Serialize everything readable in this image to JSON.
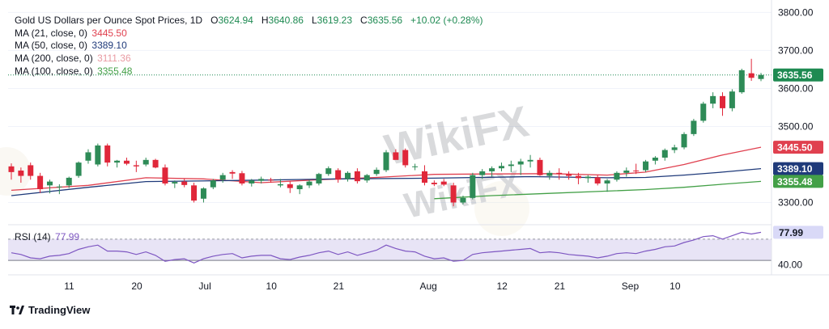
{
  "header": {
    "symbol_title": "Gold US Dollars per Ounce Spot Prices, 1D",
    "ohlc": [
      {
        "key": "O",
        "value": "3624.94"
      },
      {
        "key": "H",
        "value": "3640.86"
      },
      {
        "key": "L",
        "value": "3619.23"
      },
      {
        "key": "C",
        "value": "3635.56"
      }
    ],
    "change": "+10.02 (+0.28%)"
  },
  "indicators": [
    {
      "label": "MA (21, close, 0)",
      "value": "3445.50",
      "color": "#e0404f"
    },
    {
      "label": "MA (50, close, 0)",
      "value": "3389.10",
      "color": "#1f3a7a"
    },
    {
      "label": "MA (200, close, 0)",
      "value": "3111.36",
      "color": "#e99aa2"
    },
    {
      "label": "MA (100, close, 0)",
      "value": "3355.48",
      "color": "#43a047"
    }
  ],
  "rsi": {
    "label": "RSI (14)",
    "value": "77.99"
  },
  "price_axis": {
    "ticks": [
      "3800.00",
      "3700.00",
      "3600.00",
      "3500.00",
      "3300.00"
    ]
  },
  "rsi_axis": {
    "ticks": [
      "40.00"
    ]
  },
  "time_axis": {
    "labels": [
      "11",
      "20",
      "Jul",
      "10",
      "21",
      "Aug",
      "12",
      "21",
      "Sep",
      "10"
    ]
  },
  "price_tags": [
    {
      "value": "3635.56",
      "bg": "#1e8a52",
      "fg": "#ffffff"
    },
    {
      "value": "3445.50",
      "bg": "#e0404f",
      "fg": "#ffffff"
    },
    {
      "value": "3389.10",
      "bg": "#1f3a7a",
      "fg": "#ffffff"
    },
    {
      "value": "3355.48",
      "bg": "#43a047",
      "fg": "#ffffff"
    }
  ],
  "rsi_tag": {
    "value": "77.99",
    "bg": "#d9d9f7",
    "fg": "#131722"
  },
  "watermark": "WikiFX",
  "branding": "TradingView",
  "colors": {
    "up": "#2e8b57",
    "down": "#e0273a",
    "rsi_line": "#7e57c2",
    "rsi_band": "#e8e4f6"
  },
  "chart_data": {
    "type": "candlestick",
    "title": "Gold US Dollars per Ounce Spot Prices, 1D",
    "timeframe": "1D",
    "ylim": [
      3250,
      3820
    ],
    "candles": [
      {
        "o": 3395,
        "h": 3403,
        "l": 3360,
        "c": 3380
      },
      {
        "o": 3384,
        "h": 3392,
        "l": 3352,
        "c": 3370
      },
      {
        "o": 3398,
        "h": 3405,
        "l": 3360,
        "c": 3370
      },
      {
        "o": 3370,
        "h": 3378,
        "l": 3325,
        "c": 3335
      },
      {
        "o": 3345,
        "h": 3360,
        "l": 3324,
        "c": 3355
      },
      {
        "o": 3340,
        "h": 3348,
        "l": 3322,
        "c": 3342
      },
      {
        "o": 3345,
        "h": 3368,
        "l": 3338,
        "c": 3365
      },
      {
        "o": 3370,
        "h": 3408,
        "l": 3365,
        "c": 3405
      },
      {
        "o": 3410,
        "h": 3440,
        "l": 3402,
        "c": 3432
      },
      {
        "o": 3400,
        "h": 3455,
        "l": 3395,
        "c": 3450
      },
      {
        "o": 3450,
        "h": 3455,
        "l": 3395,
        "c": 3405
      },
      {
        "o": 3405,
        "h": 3412,
        "l": 3392,
        "c": 3410
      },
      {
        "o": 3410,
        "h": 3418,
        "l": 3398,
        "c": 3402
      },
      {
        "o": 3398,
        "h": 3410,
        "l": 3380,
        "c": 3395
      },
      {
        "o": 3400,
        "h": 3418,
        "l": 3395,
        "c": 3412
      },
      {
        "o": 3412,
        "h": 3415,
        "l": 3390,
        "c": 3392
      },
      {
        "o": 3392,
        "h": 3400,
        "l": 3345,
        "c": 3350
      },
      {
        "o": 3350,
        "h": 3358,
        "l": 3338,
        "c": 3354
      },
      {
        "o": 3355,
        "h": 3362,
        "l": 3340,
        "c": 3346
      },
      {
        "o": 3345,
        "h": 3352,
        "l": 3300,
        "c": 3305
      },
      {
        "o": 3310,
        "h": 3340,
        "l": 3300,
        "c": 3337
      },
      {
        "o": 3340,
        "h": 3362,
        "l": 3335,
        "c": 3358
      },
      {
        "o": 3360,
        "h": 3378,
        "l": 3352,
        "c": 3372
      },
      {
        "o": 3380,
        "h": 3385,
        "l": 3362,
        "c": 3376
      },
      {
        "o": 3377,
        "h": 3383,
        "l": 3345,
        "c": 3350
      },
      {
        "o": 3350,
        "h": 3362,
        "l": 3342,
        "c": 3358
      },
      {
        "o": 3357,
        "h": 3368,
        "l": 3350,
        "c": 3362
      },
      {
        "o": 3360,
        "h": 3365,
        "l": 3352,
        "c": 3358
      },
      {
        "o": 3345,
        "h": 3362,
        "l": 3340,
        "c": 3348
      },
      {
        "o": 3348,
        "h": 3356,
        "l": 3325,
        "c": 3338
      },
      {
        "o": 3335,
        "h": 3348,
        "l": 3322,
        "c": 3345
      },
      {
        "o": 3345,
        "h": 3360,
        "l": 3338,
        "c": 3355
      },
      {
        "o": 3350,
        "h": 3378,
        "l": 3345,
        "c": 3375
      },
      {
        "o": 3375,
        "h": 3395,
        "l": 3370,
        "c": 3390
      },
      {
        "o": 3385,
        "h": 3390,
        "l": 3352,
        "c": 3360
      },
      {
        "o": 3362,
        "h": 3382,
        "l": 3355,
        "c": 3378
      },
      {
        "o": 3382,
        "h": 3390,
        "l": 3350,
        "c": 3356
      },
      {
        "o": 3358,
        "h": 3375,
        "l": 3352,
        "c": 3372
      },
      {
        "o": 3375,
        "h": 3392,
        "l": 3370,
        "c": 3386
      },
      {
        "o": 3385,
        "h": 3438,
        "l": 3380,
        "c": 3432
      },
      {
        "o": 3432,
        "h": 3440,
        "l": 3415,
        "c": 3412
      },
      {
        "o": 3438,
        "h": 3442,
        "l": 3392,
        "c": 3398
      },
      {
        "o": 3395,
        "h": 3402,
        "l": 3385,
        "c": 3395
      },
      {
        "o": 3382,
        "h": 3398,
        "l": 3345,
        "c": 3352
      },
      {
        "o": 3352,
        "h": 3358,
        "l": 3343,
        "c": 3348
      },
      {
        "o": 3355,
        "h": 3362,
        "l": 3343,
        "c": 3347
      },
      {
        "o": 3345,
        "h": 3352,
        "l": 3290,
        "c": 3300
      },
      {
        "o": 3300,
        "h": 3318,
        "l": 3295,
        "c": 3312
      },
      {
        "o": 3312,
        "h": 3378,
        "l": 3308,
        "c": 3372
      },
      {
        "o": 3372,
        "h": 3388,
        "l": 3362,
        "c": 3382
      },
      {
        "o": 3382,
        "h": 3395,
        "l": 3368,
        "c": 3390
      },
      {
        "o": 3390,
        "h": 3405,
        "l": 3382,
        "c": 3396
      },
      {
        "o": 3396,
        "h": 3410,
        "l": 3380,
        "c": 3400
      },
      {
        "o": 3400,
        "h": 3415,
        "l": 3372,
        "c": 3408
      },
      {
        "o": 3408,
        "h": 3425,
        "l": 3392,
        "c": 3412
      },
      {
        "o": 3412,
        "h": 3418,
        "l": 3370,
        "c": 3372
      },
      {
        "o": 3370,
        "h": 3384,
        "l": 3360,
        "c": 3378
      },
      {
        "o": 3378,
        "h": 3390,
        "l": 3360,
        "c": 3375
      },
      {
        "o": 3375,
        "h": 3382,
        "l": 3360,
        "c": 3370
      },
      {
        "o": 3370,
        "h": 3378,
        "l": 3348,
        "c": 3364
      },
      {
        "o": 3364,
        "h": 3372,
        "l": 3352,
        "c": 3368
      },
      {
        "o": 3366,
        "h": 3372,
        "l": 3345,
        "c": 3350
      },
      {
        "o": 3350,
        "h": 3362,
        "l": 3328,
        "c": 3358
      },
      {
        "o": 3360,
        "h": 3382,
        "l": 3355,
        "c": 3378
      },
      {
        "o": 3378,
        "h": 3392,
        "l": 3368,
        "c": 3384
      },
      {
        "o": 3384,
        "h": 3402,
        "l": 3375,
        "c": 3382
      },
      {
        "o": 3385,
        "h": 3412,
        "l": 3380,
        "c": 3408
      },
      {
        "o": 3410,
        "h": 3422,
        "l": 3400,
        "c": 3418
      },
      {
        "o": 3418,
        "h": 3442,
        "l": 3410,
        "c": 3438
      },
      {
        "o": 3438,
        "h": 3452,
        "l": 3430,
        "c": 3445
      },
      {
        "o": 3445,
        "h": 3485,
        "l": 3440,
        "c": 3480
      },
      {
        "o": 3480,
        "h": 3520,
        "l": 3475,
        "c": 3515
      },
      {
        "o": 3515,
        "h": 3565,
        "l": 3510,
        "c": 3560
      },
      {
        "o": 3560,
        "h": 3590,
        "l": 3548,
        "c": 3580
      },
      {
        "o": 3580,
        "h": 3590,
        "l": 3528,
        "c": 3548
      },
      {
        "o": 3548,
        "h": 3598,
        "l": 3540,
        "c": 3592
      },
      {
        "o": 3590,
        "h": 3652,
        "l": 3586,
        "c": 3648
      },
      {
        "o": 3640,
        "h": 3678,
        "l": 3620,
        "c": 3628
      },
      {
        "o": 3624.94,
        "h": 3640.86,
        "l": 3619.23,
        "c": 3635.56
      }
    ],
    "moving_averages": [
      {
        "name": "MA (21, close, 0)",
        "points": [
          [
            0,
            3332
          ],
          [
            8,
            3345
          ],
          [
            14,
            3365
          ],
          [
            20,
            3362
          ],
          [
            26,
            3352
          ],
          [
            32,
            3360
          ],
          [
            38,
            3366
          ],
          [
            44,
            3374
          ],
          [
            50,
            3375
          ],
          [
            56,
            3376
          ],
          [
            62,
            3372
          ],
          [
            66,
            3380
          ],
          [
            70,
            3400
          ],
          [
            74,
            3425
          ],
          [
            78,
            3445.5
          ]
        ]
      },
      {
        "name": "MA (50, close, 0)",
        "points": [
          [
            0,
            3318
          ],
          [
            8,
            3340
          ],
          [
            14,
            3355
          ],
          [
            24,
            3358
          ],
          [
            34,
            3362
          ],
          [
            44,
            3364
          ],
          [
            54,
            3368
          ],
          [
            62,
            3365
          ],
          [
            66,
            3366
          ],
          [
            70,
            3372
          ],
          [
            74,
            3380
          ],
          [
            78,
            3389.1
          ]
        ]
      },
      {
        "name": "MA (100, close, 0)",
        "points": [
          [
            44,
            3310
          ],
          [
            50,
            3318
          ],
          [
            56,
            3324
          ],
          [
            62,
            3330
          ],
          [
            66,
            3334
          ],
          [
            70,
            3340
          ],
          [
            74,
            3348
          ],
          [
            78,
            3355.48
          ]
        ]
      }
    ],
    "rsi": {
      "ylim": [
        30,
        85
      ],
      "guide_levels": [
        70,
        45
      ],
      "values": [
        54,
        52,
        48,
        47,
        50,
        51,
        53,
        58,
        61,
        63,
        56,
        56,
        55,
        52,
        55,
        51,
        44,
        46,
        47,
        42,
        47,
        50,
        52,
        53,
        48,
        50,
        51,
        51,
        47,
        46,
        49,
        51,
        54,
        56,
        52,
        55,
        51,
        54,
        57,
        63,
        59,
        56,
        55,
        50,
        47,
        48,
        44,
        45,
        52,
        54,
        55,
        56,
        57,
        58,
        59,
        54,
        55,
        54,
        52,
        51,
        50,
        48,
        50,
        53,
        54,
        53,
        56,
        58,
        61,
        62,
        66,
        69,
        73,
        74,
        70,
        74,
        78,
        76,
        77.99
      ]
    }
  }
}
